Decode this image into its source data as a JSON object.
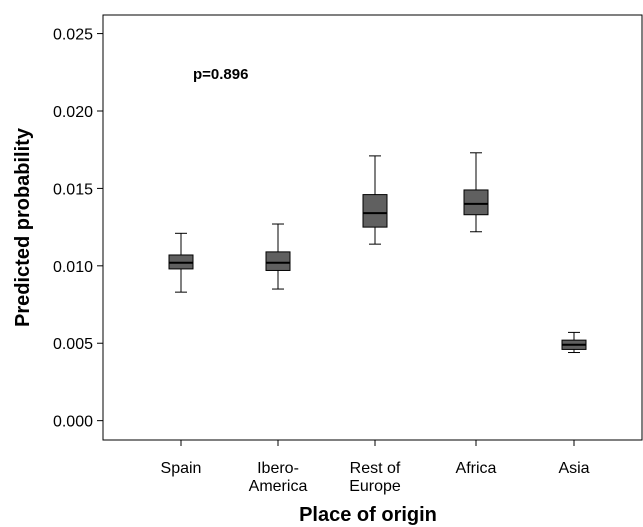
{
  "chart_data": {
    "type": "box",
    "xlabel": "Place of origin",
    "ylabel": "Predicted probability",
    "annotation": "p=0.896",
    "ylim": [
      -0.00125,
      0.0262
    ],
    "yticks": [
      "0.000",
      "0.005",
      "0.010",
      "0.015",
      "0.020",
      "0.025"
    ],
    "ytick_values": [
      0,
      0.005,
      0.01,
      0.015,
      0.02,
      0.025
    ],
    "grid": false,
    "box_color": "#606060",
    "categories": [
      {
        "label_lines": [
          "Spain"
        ],
        "whisker_low": 0.0083,
        "q1": 0.0098,
        "median": 0.0102,
        "q3": 0.0107,
        "whisker_high": 0.0121
      },
      {
        "label_lines": [
          "Ibero-",
          "America"
        ],
        "whisker_low": 0.0085,
        "q1": 0.0097,
        "median": 0.0102,
        "q3": 0.0109,
        "whisker_high": 0.0127
      },
      {
        "label_lines": [
          "Rest of",
          "Europe"
        ],
        "whisker_low": 0.0114,
        "q1": 0.0125,
        "median": 0.0134,
        "q3": 0.0146,
        "whisker_high": 0.0171
      },
      {
        "label_lines": [
          "Africa"
        ],
        "whisker_low": 0.0122,
        "q1": 0.0133,
        "median": 0.014,
        "q3": 0.0149,
        "whisker_high": 0.0173
      },
      {
        "label_lines": [
          "Asia"
        ],
        "whisker_low": 0.0044,
        "q1": 0.0046,
        "median": 0.0049,
        "q3": 0.0052,
        "whisker_high": 0.0057
      }
    ]
  }
}
